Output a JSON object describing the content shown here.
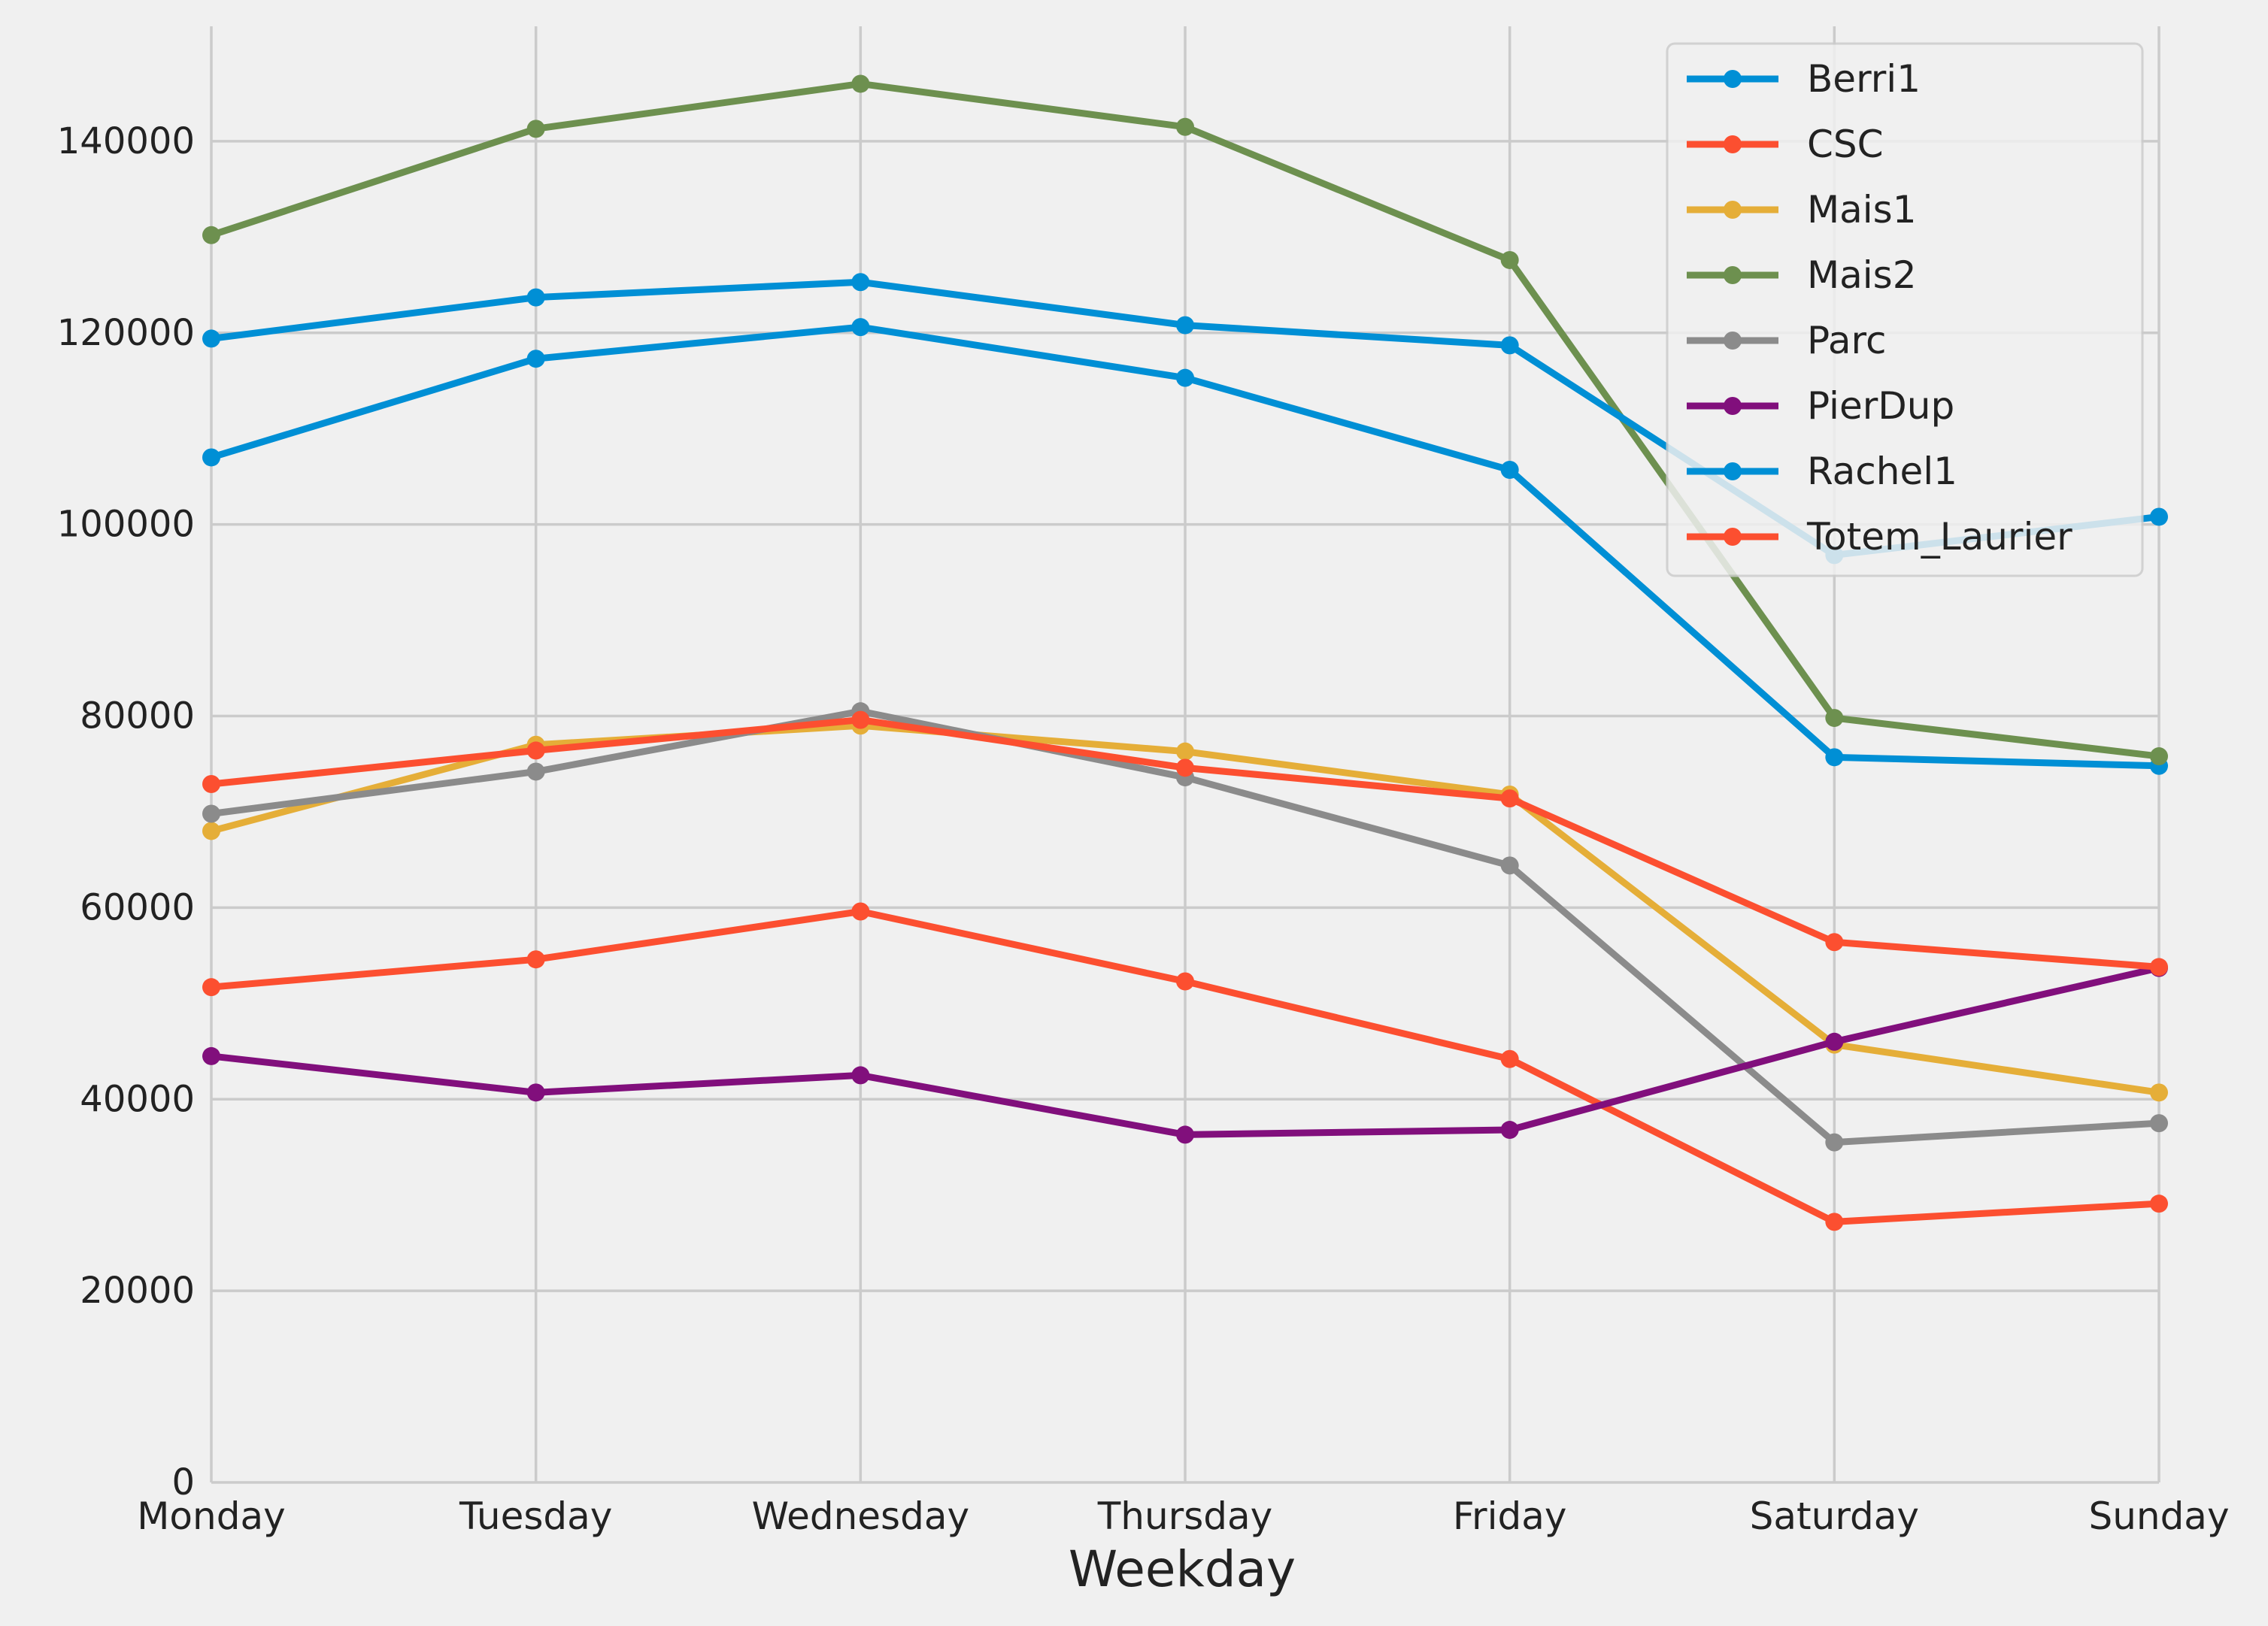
{
  "chart_data": {
    "type": "line",
    "title": "",
    "xlabel": "Weekday",
    "ylabel": "",
    "categories": [
      "Monday",
      "Tuesday",
      "Wednesday",
      "Thursday",
      "Friday",
      "Saturday",
      "Sunday"
    ],
    "ylim": [
      0,
      152000
    ],
    "yticks": [
      0,
      20000,
      40000,
      60000,
      80000,
      100000,
      120000,
      140000
    ],
    "ytick_labels": [
      "0",
      "20000",
      "40000",
      "60000",
      "80000",
      "100000",
      "120000",
      "140000"
    ],
    "grid": true,
    "legend": "top-right",
    "series": [
      {
        "name": "Berri1",
        "color": "#008fd5",
        "values": [
          107000,
          117300,
          120600,
          115300,
          105700,
          75700,
          74800
        ]
      },
      {
        "name": "CSC",
        "color": "#fc4f30",
        "values": [
          51700,
          54600,
          59600,
          52300,
          44200,
          27200,
          29100
        ]
      },
      {
        "name": "Mais1",
        "color": "#e5ae38",
        "values": [
          68000,
          77000,
          79000,
          76300,
          71800,
          45700,
          40700
        ]
      },
      {
        "name": "Mais2",
        "color": "#6d904f",
        "values": [
          130200,
          141300,
          146000,
          141500,
          127600,
          79800,
          75800
        ]
      },
      {
        "name": "Parc",
        "color": "#8b8b8b",
        "values": [
          69800,
          74200,
          80500,
          73600,
          64400,
          35500,
          37500
        ]
      },
      {
        "name": "PierDup",
        "color": "#810f7c",
        "values": [
          44500,
          40700,
          42500,
          36300,
          36800,
          46000,
          53700
        ]
      },
      {
        "name": "Rachel1",
        "color": "#008fd5",
        "values": [
          119400,
          123700,
          125300,
          120800,
          118700,
          96800,
          100800
        ]
      },
      {
        "name": "Totem_Laurier",
        "color": "#fc4f30",
        "values": [
          72900,
          76400,
          79600,
          74600,
          71400,
          56400,
          53800
        ]
      }
    ]
  }
}
